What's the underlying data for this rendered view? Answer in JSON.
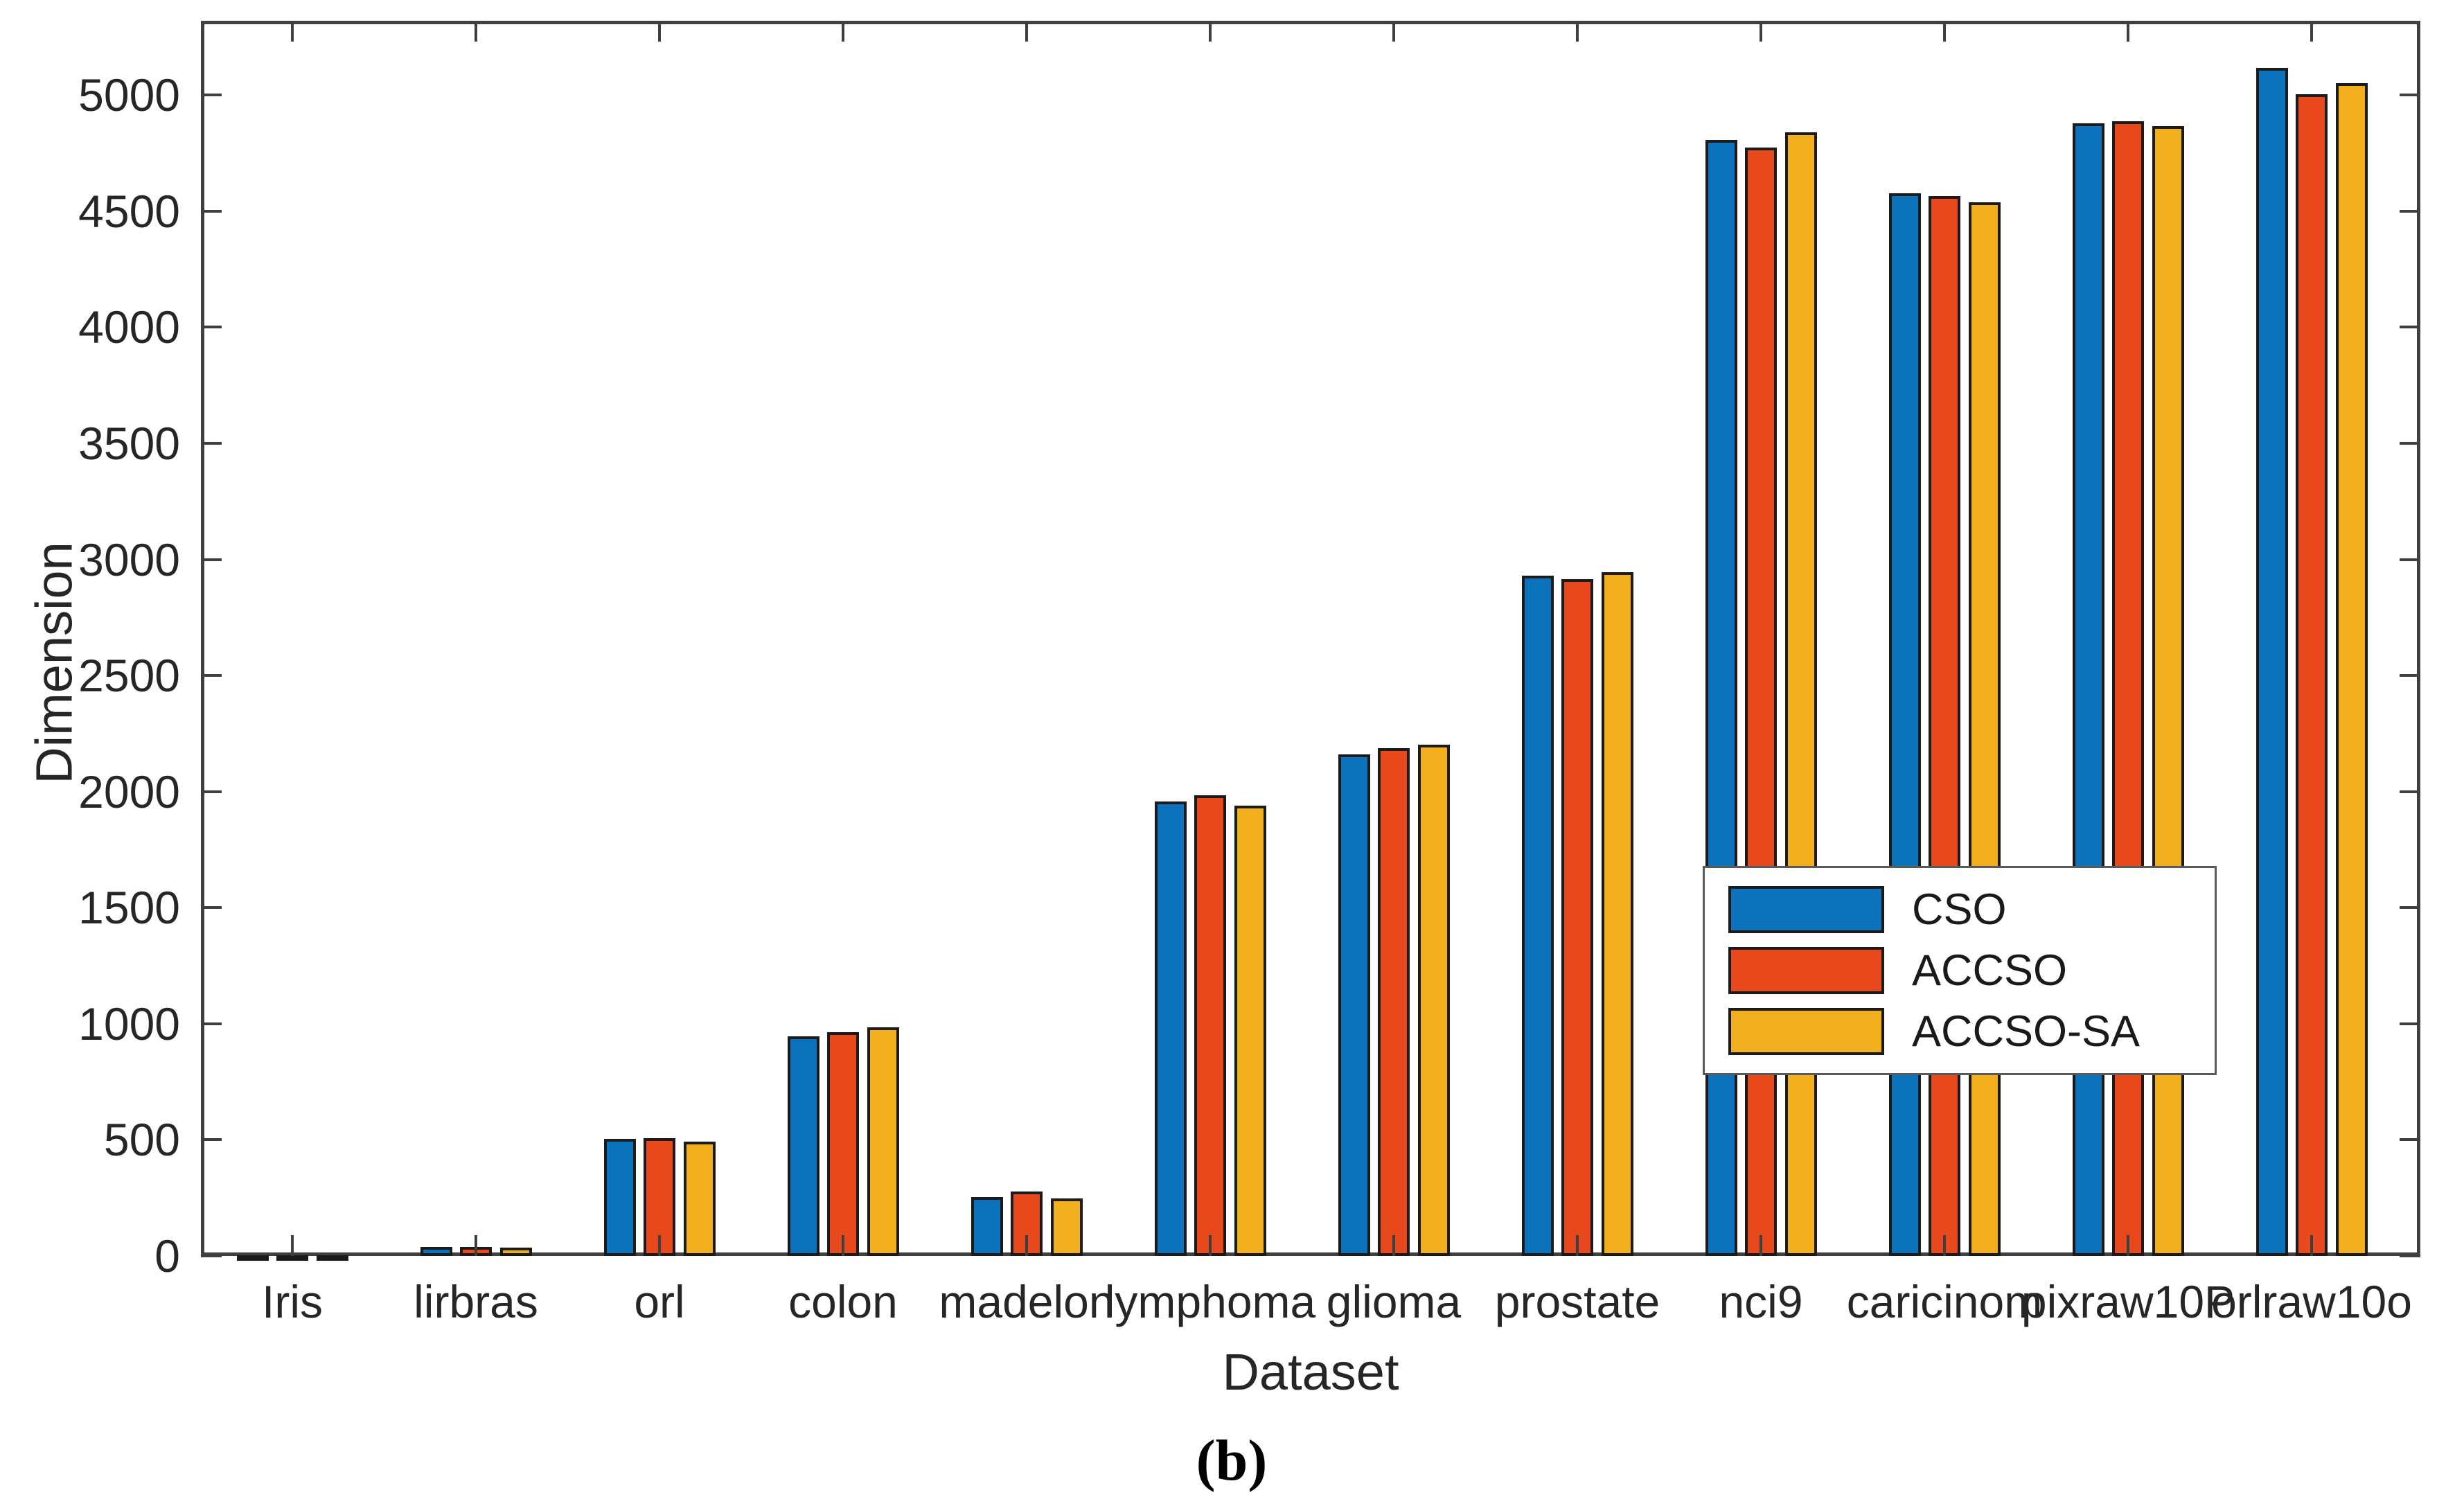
{
  "figure": {
    "caption": "(b)"
  },
  "chart_data": {
    "type": "bar",
    "title": "",
    "xlabel": "Dataset",
    "ylabel": "Dimension",
    "ylim": [
      0,
      5320
    ],
    "yticks": [
      0,
      500,
      1000,
      1500,
      2000,
      2500,
      3000,
      3500,
      4000,
      4500,
      5000
    ],
    "grid": false,
    "legend_position": "inside-right-middle",
    "bar_edge_color": "#1b1b1b",
    "categories": [
      "Iris",
      "lirbras",
      "orl",
      "colon",
      "madelon",
      "lymphoma",
      "glioma",
      "prostate",
      "nci9",
      "caricinom",
      "pixraw10P",
      "orlraw10o"
    ],
    "series": [
      {
        "name": "CSO",
        "color": "#0D72BC",
        "values": [
          2,
          38,
          505,
          945,
          255,
          1958,
          2160,
          2930,
          4808,
          4578,
          4878,
          5118
        ]
      },
      {
        "name": "ACCSO",
        "color": "#E8491C",
        "values": [
          2,
          40,
          508,
          965,
          278,
          1985,
          2186,
          2915,
          4775,
          4566,
          4887,
          5005
        ]
      },
      {
        "name": "ACCSO-SA",
        "color": "#F2AF1D",
        "values": [
          2,
          36,
          492,
          985,
          248,
          1940,
          2203,
          2945,
          4840,
          4537,
          4865,
          5050
        ]
      }
    ]
  }
}
